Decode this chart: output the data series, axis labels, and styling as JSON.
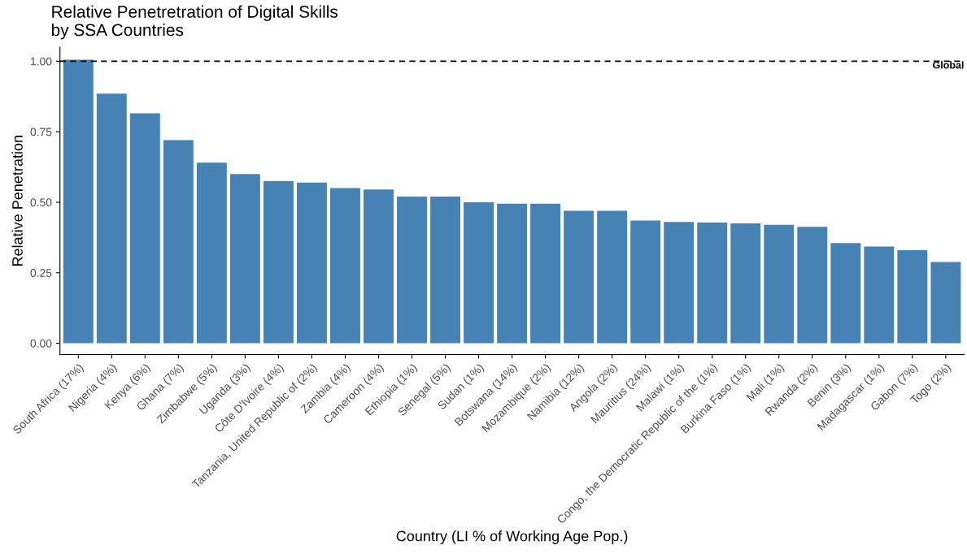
{
  "chart_data": {
    "type": "bar",
    "title": "Relative Penetretration of Digital Skills\nby SSA Countries",
    "xlabel": "Country (LI % of Working Age Pop.)",
    "ylabel": "Relative Penetration",
    "categories": [
      "South Africa (17%)",
      "Nigeria (4%)",
      "Kenya (6%)",
      "Ghana (7%)",
      "Zimbabwe (5%)",
      "Uganda (3%)",
      "Côte D'Ivoire (4%)",
      "Tanzania, United Republic of (2%)",
      "Zambia (4%)",
      "Cameroon (4%)",
      "Ethiopia (1%)",
      "Senegal (5%)",
      "Sudan (1%)",
      "Botswana (14%)",
      "Mozambique (2%)",
      "Namibia (12%)",
      "Angola (2%)",
      "Mauritius (24%)",
      "Malawi (1%)",
      "Congo, the Democratic Republic of the (1%)",
      "Burkina Faso (1%)",
      "Mali (1%)",
      "Rwanda (2%)",
      "Benin (3%)",
      "Madagascar (1%)",
      "Gabon (7%)",
      "Togo (2%)"
    ],
    "values": [
      1.005,
      0.885,
      0.815,
      0.72,
      0.64,
      0.6,
      0.575,
      0.57,
      0.55,
      0.545,
      0.52,
      0.52,
      0.5,
      0.495,
      0.495,
      0.47,
      0.47,
      0.435,
      0.43,
      0.428,
      0.425,
      0.42,
      0.413,
      0.355,
      0.343,
      0.33,
      0.288
    ],
    "color": "#4682b4",
    "ylim": [
      -0.04,
      1.05
    ],
    "yticks": [
      {
        "value": 0,
        "label": "0.00"
      },
      {
        "value": 0.25,
        "label": "0.25"
      },
      {
        "value": 0.5,
        "label": "0.50"
      },
      {
        "value": 0.75,
        "label": "0.75"
      },
      {
        "value": 1,
        "label": "1.00"
      }
    ],
    "ref_lines": [
      {
        "axis": "y",
        "value": 1,
        "label": "Global",
        "color": "#000000",
        "line_style": "dashed"
      }
    ],
    "grid": false,
    "legend": false
  }
}
